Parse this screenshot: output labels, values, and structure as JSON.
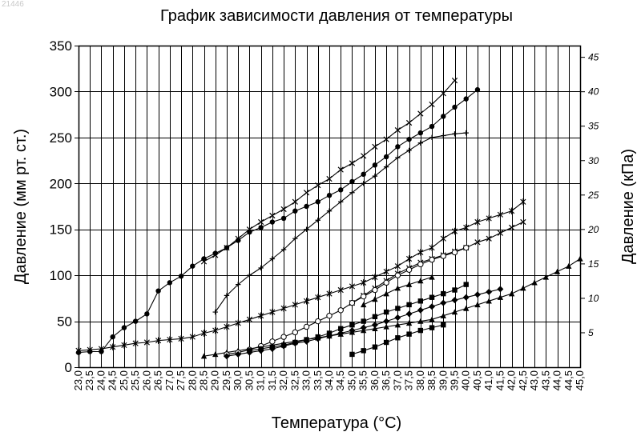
{
  "watermark": "21446",
  "chart_data": {
    "type": "line",
    "title": "График зависимости давления от температуры",
    "xlabel": "Температура (°C)",
    "ylabel": "Давление (мм рт. ст.)",
    "y2label": "Давление (кПа)",
    "xlim": [
      23.0,
      45.0
    ],
    "ylim": [
      0,
      350
    ],
    "y2lim": [
      0,
      46.7
    ],
    "grid": true,
    "legend": "none",
    "x_ticks": [
      "23,0",
      "23,5",
      "24,0",
      "24,5",
      "25,0",
      "25,5",
      "26,0",
      "26,5",
      "27,0",
      "27,5",
      "28,0",
      "28,5",
      "29,0",
      "29,5",
      "30,0",
      "30,5",
      "31,0",
      "31,5",
      "32,0",
      "32,5",
      "33,0",
      "33,5",
      "34,0",
      "34,5",
      "35,0",
      "35,5",
      "36,0",
      "36,5",
      "37,0",
      "37,5",
      "38,0",
      "38,5",
      "39,0",
      "39,5",
      "40,0",
      "40,5",
      "41,0",
      "41,5",
      "42,0",
      "42,5",
      "43,0",
      "43,5",
      "44,0",
      "44,5",
      "45,0"
    ],
    "y_ticks": [
      "0",
      "50",
      "100",
      "150",
      "200",
      "250",
      "300",
      "350"
    ],
    "y2_ticks": [
      "5",
      "10",
      "15",
      "20",
      "25",
      "30",
      "35",
      "40",
      "45"
    ],
    "series": [
      {
        "marker": "circle-filled",
        "x": [
          23.0,
          23.5,
          24.0,
          24.5,
          25.0,
          25.5,
          26.0,
          26.5,
          27.0,
          27.5,
          28.0,
          28.5,
          29.0,
          29.5,
          30.0,
          30.5,
          31.0,
          31.5,
          32.0,
          32.5,
          33.0,
          33.5,
          34.0,
          34.5,
          35.0,
          35.5,
          36.0,
          36.5,
          37.0,
          37.5,
          38.0,
          38.5,
          39.0,
          39.5,
          40.0,
          40.5
        ],
        "y": [
          16,
          17,
          17,
          33,
          43,
          50,
          58,
          83,
          92,
          99,
          110,
          118,
          124,
          130,
          138,
          147,
          152,
          158,
          162,
          170,
          175,
          180,
          187,
          193,
          202,
          210,
          220,
          229,
          240,
          248,
          255,
          262,
          273,
          283,
          292,
          302
        ]
      },
      {
        "marker": "cross",
        "x": [
          28.5,
          29.0,
          29.5,
          30.0,
          30.5,
          31.0,
          31.5,
          32.0,
          32.5,
          33.0,
          33.5,
          34.0,
          34.5,
          35.0,
          35.5,
          36.0,
          36.5,
          37.0,
          37.5,
          38.0,
          38.5,
          39.0,
          39.5
        ],
        "y": [
          115,
          122,
          130,
          140,
          150,
          158,
          165,
          172,
          180,
          190,
          198,
          205,
          215,
          222,
          230,
          240,
          248,
          258,
          266,
          276,
          286,
          298,
          312
        ]
      },
      {
        "marker": "plus",
        "x": [
          29.0,
          29.5,
          30.0,
          30.5,
          31.0,
          31.5,
          32.0,
          32.5,
          33.0,
          33.5,
          34.0,
          34.5,
          35.0,
          35.5,
          36.0,
          36.5,
          37.0,
          37.5,
          38.0,
          38.5,
          39.0,
          39.5,
          40.0
        ],
        "y": [
          60,
          78,
          90,
          100,
          108,
          118,
          128,
          140,
          150,
          160,
          170,
          180,
          190,
          200,
          208,
          218,
          228,
          236,
          244,
          250,
          252,
          254,
          255
        ]
      },
      {
        "marker": "star",
        "x": [
          23.0,
          23.5,
          24.0,
          24.5,
          25.0,
          25.5,
          26.0,
          26.5,
          27.0,
          27.5,
          28.0,
          28.5,
          29.0,
          29.5,
          30.0,
          30.5,
          31.0,
          31.5,
          32.0,
          32.5,
          33.0,
          33.5,
          34.0,
          34.5,
          35.0,
          35.5,
          36.0,
          36.5,
          37.0,
          37.5,
          38.0,
          38.5,
          39.0,
          39.5,
          40.0,
          40.5,
          41.0,
          41.5,
          42.0,
          42.5
        ],
        "y": [
          18,
          19,
          20,
          22,
          24,
          26,
          27,
          29,
          30,
          31,
          33,
          37,
          40,
          44,
          48,
          52,
          56,
          60,
          64,
          68,
          72,
          76,
          80,
          84,
          88,
          92,
          98,
          104,
          110,
          118,
          125,
          130,
          140,
          148,
          152,
          158,
          162,
          166,
          170,
          180
        ]
      },
      {
        "marker": "cross",
        "x": [
          35.0,
          35.5,
          36.0,
          36.5,
          37.0,
          37.5,
          38.0,
          38.5,
          39.0,
          39.5,
          40.0,
          40.5,
          41.0,
          41.5,
          42.0,
          42.5
        ],
        "y": [
          70,
          78,
          86,
          94,
          102,
          108,
          114,
          118,
          122,
          126,
          130,
          136,
          140,
          146,
          152,
          158
        ]
      },
      {
        "marker": "triangle",
        "x": [
          28.5,
          29.0,
          29.5,
          30.0,
          30.5,
          31.0,
          31.5,
          32.0,
          32.5,
          33.0,
          33.5,
          34.0,
          34.5,
          35.0,
          35.5,
          36.0,
          36.5,
          37.0,
          37.5,
          38.0,
          38.5,
          39.0,
          39.5,
          40.0,
          40.5,
          41.0,
          41.5,
          42.0,
          42.5,
          43.0,
          43.5,
          44.0,
          44.5,
          45.0
        ],
        "y": [
          12,
          14,
          16,
          18,
          20,
          22,
          24,
          26,
          28,
          30,
          32,
          34,
          36,
          38,
          40,
          42,
          44,
          46,
          48,
          50,
          52,
          56,
          60,
          64,
          68,
          72,
          76,
          80,
          86,
          92,
          98,
          104,
          110,
          118
        ]
      },
      {
        "marker": "circle-open",
        "x": [
          29.5,
          30.0,
          30.5,
          31.0,
          31.5,
          32.0,
          32.5,
          33.0,
          33.5,
          34.0,
          34.5,
          35.0,
          35.5,
          36.0,
          36.5,
          37.0,
          37.5,
          38.0,
          38.5,
          39.0,
          39.5,
          40.0
        ],
        "y": [
          14,
          16,
          19,
          23,
          28,
          33,
          38,
          44,
          50,
          56,
          62,
          70,
          77,
          84,
          92,
          100,
          106,
          112,
          117,
          121,
          125,
          130
        ]
      },
      {
        "marker": "square-filled",
        "x": [
          30.5,
          31.0,
          31.5,
          32.0,
          32.5,
          33.0,
          33.5,
          34.0,
          34.5,
          35.0,
          35.5,
          36.0,
          36.5,
          37.0,
          37.5,
          38.0,
          38.5,
          39.0,
          39.5,
          40.0
        ],
        "y": [
          18,
          20,
          22,
          24,
          27,
          30,
          33,
          37,
          42,
          46,
          50,
          55,
          60,
          64,
          68,
          72,
          76,
          80,
          84,
          90
        ]
      },
      {
        "marker": "diamond-filled",
        "x": [
          29.5,
          30.0,
          30.5,
          31.0,
          31.5,
          32.0,
          32.5,
          33.0,
          33.5,
          34.0,
          34.5,
          35.0,
          35.5,
          36.0,
          36.5,
          37.0,
          37.5,
          38.0,
          38.5,
          39.0,
          39.5,
          40.0,
          40.5,
          41.0,
          41.5
        ],
        "y": [
          12,
          14,
          16,
          18,
          20,
          23,
          26,
          28,
          31,
          34,
          37,
          40,
          43,
          46,
          50,
          54,
          58,
          62,
          66,
          70,
          73,
          76,
          79,
          82,
          85
        ]
      },
      {
        "marker": "square-filled",
        "x": [
          35.0,
          35.5,
          36.0,
          36.5,
          37.0,
          37.5,
          38.0,
          38.5,
          39.0
        ],
        "y": [
          14,
          18,
          22,
          27,
          32,
          36,
          40,
          43,
          46
        ]
      },
      {
        "marker": "triangle",
        "x": [
          35.5,
          36.0,
          36.5,
          37.0,
          37.5,
          38.0,
          38.5
        ],
        "y": [
          68,
          74,
          80,
          86,
          90,
          94,
          98
        ]
      }
    ]
  }
}
